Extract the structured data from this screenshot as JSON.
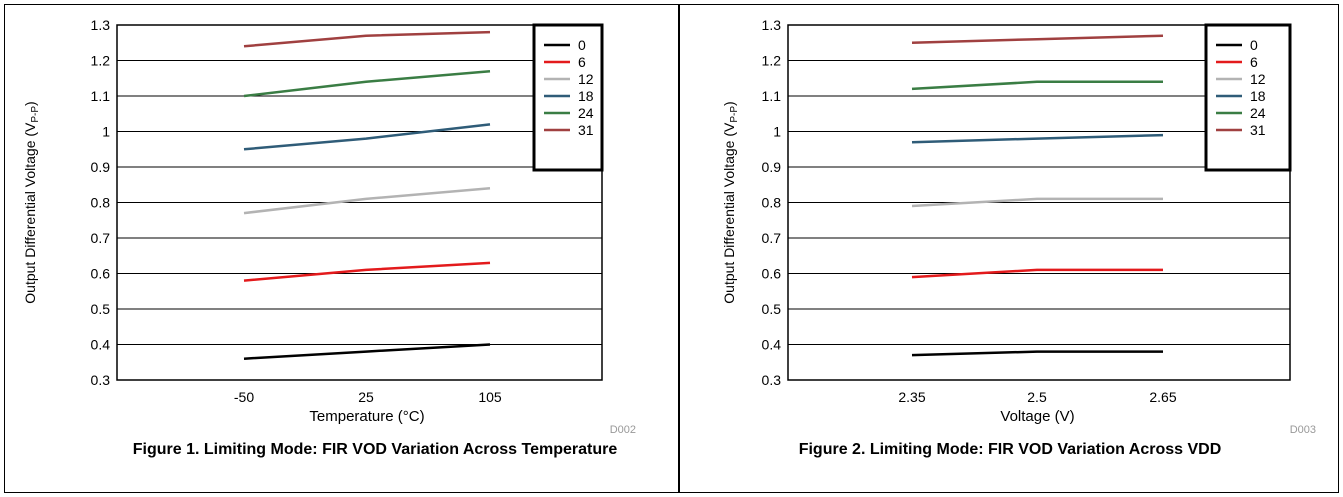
{
  "chart_data": [
    {
      "type": "line",
      "caption": "Figure 1.  Limiting Mode: FIR VOD Variation Across Temperature",
      "xlabel": "Temperature (°C)",
      "ylabel_main": "Output Differential Voltage (V",
      "ylabel_sub": "P-P",
      "ylabel_close": ")",
      "code": "D002",
      "x": [
        "-50",
        "25",
        "105"
      ],
      "ylim": [
        0.3,
        1.3
      ],
      "yticks": [
        "0.3",
        "0.4",
        "0.5",
        "0.6",
        "0.7",
        "0.8",
        "0.9",
        "1",
        "1.1",
        "1.2",
        "1.3"
      ],
      "grid": "horizontal",
      "legend_position": "top-right",
      "series": [
        {
          "name": "0",
          "color": "#000000",
          "values": [
            0.36,
            0.38,
            0.4
          ]
        },
        {
          "name": "6",
          "color": "#e31a1c",
          "values": [
            0.58,
            0.61,
            0.63
          ]
        },
        {
          "name": "12",
          "color": "#b3b3b3",
          "values": [
            0.77,
            0.81,
            0.84
          ]
        },
        {
          "name": "18",
          "color": "#2f5c78",
          "values": [
            0.95,
            0.98,
            1.02
          ]
        },
        {
          "name": "24",
          "color": "#3a7d44",
          "values": [
            1.1,
            1.14,
            1.17
          ]
        },
        {
          "name": "31",
          "color": "#a04040",
          "values": [
            1.24,
            1.27,
            1.28
          ]
        }
      ]
    },
    {
      "type": "line",
      "caption": "Figure 2.  Limiting Mode: FIR VOD Variation Across VDD",
      "xlabel": "Voltage (V)",
      "ylabel_main": "Output Differential Voltage (V",
      "ylabel_sub": "P-P",
      "ylabel_close": ")",
      "code": "D003",
      "x": [
        "2.35",
        "2.5",
        "2.65"
      ],
      "ylim": [
        0.3,
        1.3
      ],
      "yticks": [
        "0.3",
        "0.4",
        "0.5",
        "0.6",
        "0.7",
        "0.8",
        "0.9",
        "1",
        "1.1",
        "1.2",
        "1.3"
      ],
      "grid": "horizontal",
      "legend_position": "top-right",
      "series": [
        {
          "name": "0",
          "color": "#000000",
          "values": [
            0.37,
            0.38,
            0.38
          ]
        },
        {
          "name": "6",
          "color": "#e31a1c",
          "values": [
            0.59,
            0.61,
            0.61
          ]
        },
        {
          "name": "12",
          "color": "#b3b3b3",
          "values": [
            0.79,
            0.81,
            0.81
          ]
        },
        {
          "name": "18",
          "color": "#2f5c78",
          "values": [
            0.97,
            0.98,
            0.99
          ]
        },
        {
          "name": "24",
          "color": "#3a7d44",
          "values": [
            1.12,
            1.14,
            1.14
          ]
        },
        {
          "name": "31",
          "color": "#a04040",
          "values": [
            1.25,
            1.26,
            1.27
          ]
        }
      ]
    }
  ]
}
